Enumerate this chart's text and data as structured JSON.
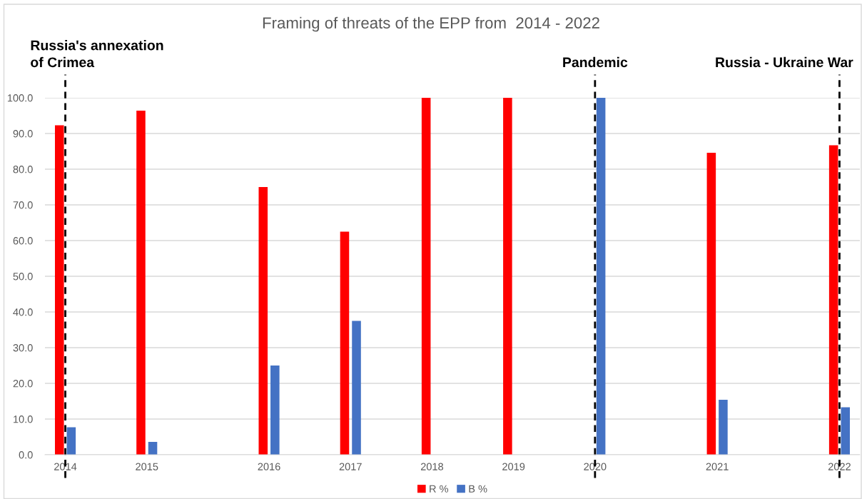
{
  "chart_data": {
    "type": "bar",
    "title": "Framing of threats of the EPP from  2014 - 2022",
    "categories": [
      "2014",
      null,
      "2015",
      null,
      null,
      "2016",
      null,
      "2017",
      null,
      "2018",
      null,
      "2019",
      null,
      "2020",
      null,
      null,
      "2021",
      null,
      null,
      "2022"
    ],
    "series": [
      {
        "name": "R %",
        "color": "#ff0000",
        "values": [
          92.3,
          null,
          96.4,
          null,
          null,
          75.0,
          null,
          62.5,
          null,
          100.0,
          null,
          100.0,
          null,
          null,
          null,
          null,
          84.6,
          null,
          null,
          86.7
        ]
      },
      {
        "name": "B %",
        "color": "#4472c4",
        "values": [
          7.7,
          null,
          3.6,
          null,
          null,
          25.0,
          null,
          37.5,
          null,
          null,
          null,
          null,
          null,
          100.0,
          null,
          null,
          15.4,
          null,
          null,
          13.3
        ]
      }
    ],
    "ylim": [
      0,
      100
    ],
    "yticks": [
      {
        "value": 0,
        "label": "0.0"
      },
      {
        "value": 10,
        "label": "10.0"
      },
      {
        "value": 20,
        "label": "20.0"
      },
      {
        "value": 30,
        "label": "30.0"
      },
      {
        "value": 40,
        "label": "40.0"
      },
      {
        "value": 50,
        "label": "50.0"
      },
      {
        "value": 60,
        "label": "60.0"
      },
      {
        "value": 70,
        "label": "70.0"
      },
      {
        "value": 80,
        "label": "80.0"
      },
      {
        "value": 90,
        "label": "90.0"
      },
      {
        "value": 100,
        "label": "100.0"
      }
    ],
    "grid": "y",
    "legend": "bottom",
    "ref_lines": [
      {
        "axis": "x",
        "value": "2014",
        "label": "Russia's annexation\nof Crimea",
        "color": "#000000",
        "line_style": "dashed"
      },
      {
        "axis": "x",
        "value": "2020",
        "label": "Pandemic",
        "color": "#000000",
        "line_style": "dashed"
      },
      {
        "axis": "x",
        "value": "2022",
        "label": "Russia - Ukraine War",
        "color": "#000000",
        "line_style": "dashed"
      }
    ]
  }
}
